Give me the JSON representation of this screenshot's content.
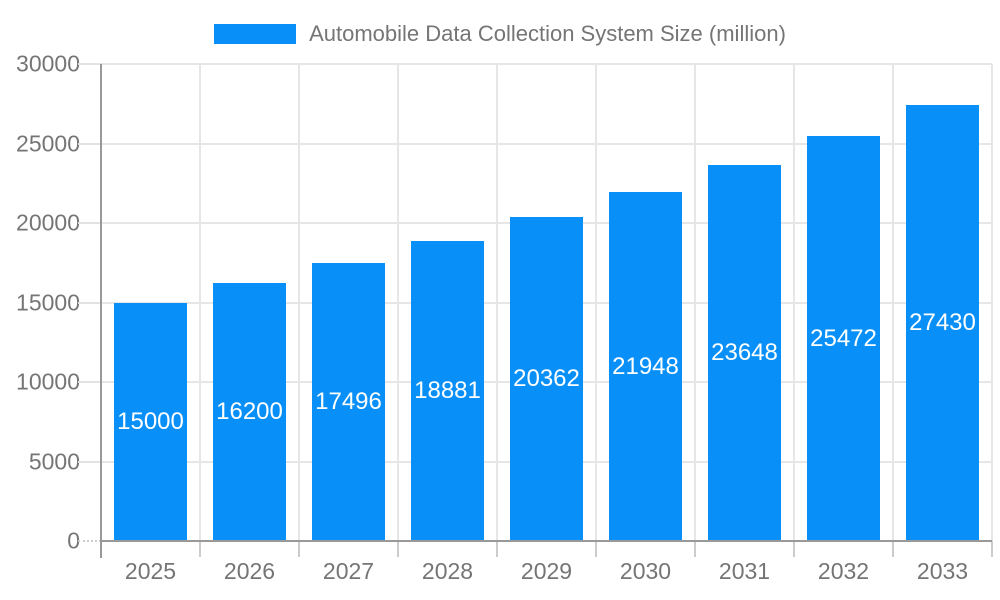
{
  "chart_data": {
    "type": "bar",
    "title": "Automobile Data Collection System Size (million)",
    "legend": "Automobile Data Collection System Size (million)",
    "legend_position": "top-center",
    "categories": [
      "2025",
      "2026",
      "2027",
      "2028",
      "2029",
      "2030",
      "2031",
      "2032",
      "2033"
    ],
    "values": [
      15000,
      16200,
      17496,
      18881,
      20362,
      21948,
      23648,
      25472,
      27430
    ],
    "xlabel": "",
    "ylabel": "",
    "ylim": [
      0,
      30000
    ],
    "yticks": [
      0,
      5000,
      10000,
      15000,
      20000,
      25000,
      30000
    ],
    "grid": true,
    "bar_color": "#0990F8",
    "bar_label_color": "#ffffff",
    "axis_text_color": "#757575",
    "grid_color": "#e6e6e6",
    "axis_line_color": "#999999",
    "tick_color": "#cccccc",
    "background_color": "#ffffff"
  }
}
